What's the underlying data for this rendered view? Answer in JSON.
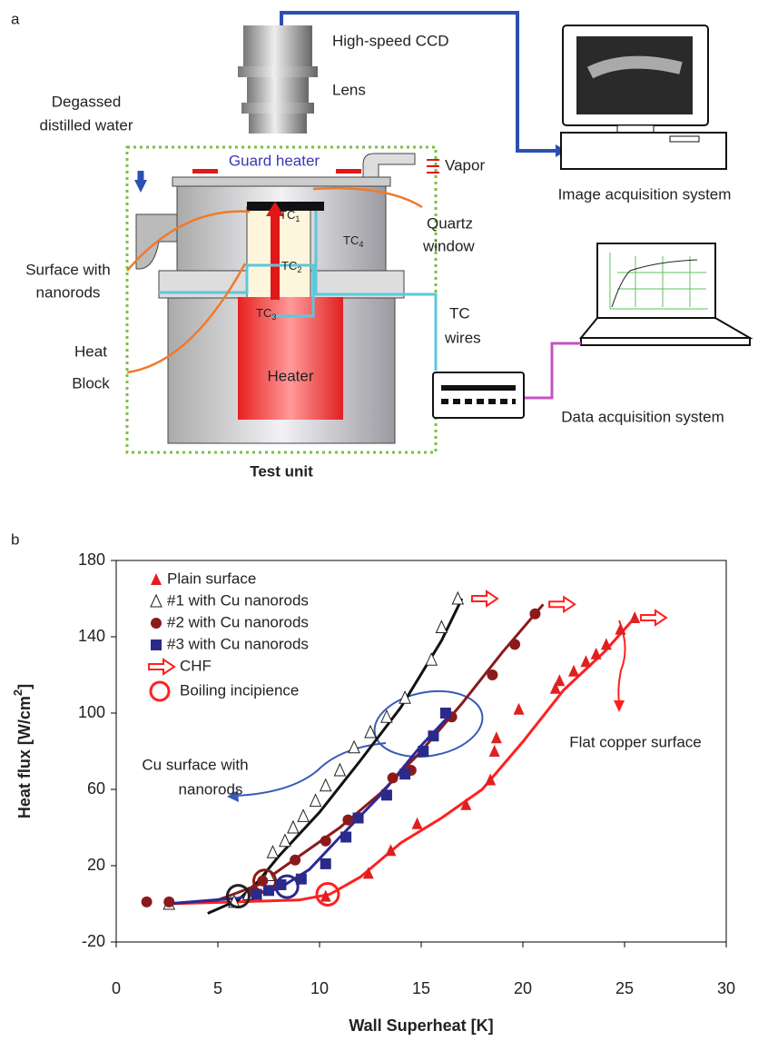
{
  "diagram": {
    "panel": "a",
    "labels": [
      "High-speed CCD",
      "Lens",
      "Degassed",
      "distilled water",
      "Guard heater",
      "Vapor",
      "Image acquisition system",
      "Quartz",
      "window",
      "Surface with",
      "nanorods",
      "Heat",
      "Block",
      "Heater",
      "TC",
      "wires",
      "Data acquisition system",
      "Test unit"
    ],
    "tc": [
      {
        "text": "TC",
        "sub": "1"
      },
      {
        "text": "TC",
        "sub": "2"
      },
      {
        "text": "TC",
        "sub": "3"
      },
      {
        "text": "TC",
        "sub": "4"
      }
    ]
  },
  "chart_data": {
    "type": "scatter",
    "panel": "b",
    "xlabel": "Wall Superheat [K]",
    "ylabel": {
      "text": "Heat flux [W/cm",
      "sup": "2",
      "end": "]"
    },
    "xlim": [
      0,
      30
    ],
    "xticks": [
      0,
      5,
      10,
      15,
      20,
      25,
      30
    ],
    "ylim": [
      -20,
      180
    ],
    "yticks": [
      -20,
      20,
      60,
      100,
      140,
      180
    ],
    "series": [
      {
        "name": "Plain surface",
        "color": "#e02020",
        "marker": "triangle",
        "x": [
          10.3,
          12.4,
          13.5,
          14.8,
          17.2,
          18.4,
          18.6,
          18.7,
          19.8,
          21.6,
          21.8,
          22.5,
          23.1,
          23.6,
          24.1,
          24.8,
          25.5
        ],
        "values": [
          4,
          16,
          28,
          42,
          52,
          65,
          80,
          87,
          102,
          113,
          117,
          122,
          127,
          131,
          136,
          144,
          150
        ],
        "incipience": [
          10.4,
          5
        ],
        "chf": [
          25.8,
          150
        ]
      },
      {
        "name": "#1 with Cu nanorods",
        "color": "#222222",
        "marker": "open-triangle",
        "x": [
          2.6,
          5.8,
          6.5,
          7.5,
          7.7,
          8.3,
          8.7,
          9.2,
          9.8,
          10.3,
          11.0,
          11.7,
          12.5,
          13.3,
          14.2,
          15.5,
          16.0,
          16.8
        ],
        "values": [
          0,
          1,
          5,
          15,
          27,
          33,
          40,
          46,
          54,
          62,
          70,
          82,
          90,
          98,
          108,
          128,
          145,
          160
        ],
        "incipience": [
          6.0,
          4
        ],
        "chf": [
          17.5,
          160
        ]
      },
      {
        "name": "#2 with Cu nanorods",
        "color": "#8b1a1a",
        "marker": "circle",
        "x": [
          1.5,
          2.6,
          6.8,
          7.2,
          8.8,
          10.3,
          11.4,
          13.6,
          14.5,
          16.5,
          18.5,
          19.6,
          20.6
        ],
        "values": [
          1,
          1,
          6,
          12,
          23,
          33,
          44,
          66,
          70,
          98,
          120,
          136,
          152
        ],
        "incipience": [
          7.3,
          12
        ],
        "chf": [
          21.3,
          157
        ]
      },
      {
        "name": "#3 with Cu nanorods",
        "color": "#2a2a8a",
        "marker": "square",
        "x": [
          6.9,
          7.5,
          8.1,
          9.1,
          10.3,
          11.3,
          11.9,
          13.3,
          14.2,
          15.1,
          15.6,
          16.2
        ],
        "values": [
          5,
          7,
          10,
          13,
          21,
          35,
          45,
          57,
          68,
          80,
          88,
          100
        ],
        "incipience": [
          8.4,
          9
        ]
      }
    ],
    "fits": [
      {
        "color": "#ff2020",
        "x": [
          2.5,
          9,
          10.5,
          12,
          14,
          16,
          18,
          20,
          22,
          24,
          25.5
        ],
        "values": [
          0,
          2,
          5,
          14,
          32,
          45,
          60,
          85,
          112,
          132,
          150
        ]
      },
      {
        "color": "#111111",
        "x": [
          4.5,
          6,
          7,
          8,
          10,
          12,
          14,
          16,
          17
        ],
        "values": [
          -5,
          2,
          12,
          25,
          48,
          75,
          103,
          138,
          160
        ]
      },
      {
        "color": "#8b1a1a",
        "x": [
          2.5,
          5,
          7,
          9,
          11,
          13,
          15,
          17,
          19,
          21
        ],
        "values": [
          0,
          2,
          10,
          25,
          40,
          58,
          80,
          105,
          132,
          157
        ]
      },
      {
        "color": "#2a2a9a",
        "x": [
          2.5,
          6,
          8,
          9.5,
          11,
          13,
          15,
          16.5
        ],
        "values": [
          0,
          3,
          8,
          18,
          35,
          57,
          83,
          100
        ]
      }
    ],
    "chf_label": "CHF",
    "chf_color": "#ff2020",
    "incipience_label": "Boiling incipience",
    "annotations": [
      {
        "lines": [
          "Cu surface with",
          "nanorods"
        ]
      },
      {
        "lines": [
          "Flat copper surface"
        ]
      }
    ]
  }
}
